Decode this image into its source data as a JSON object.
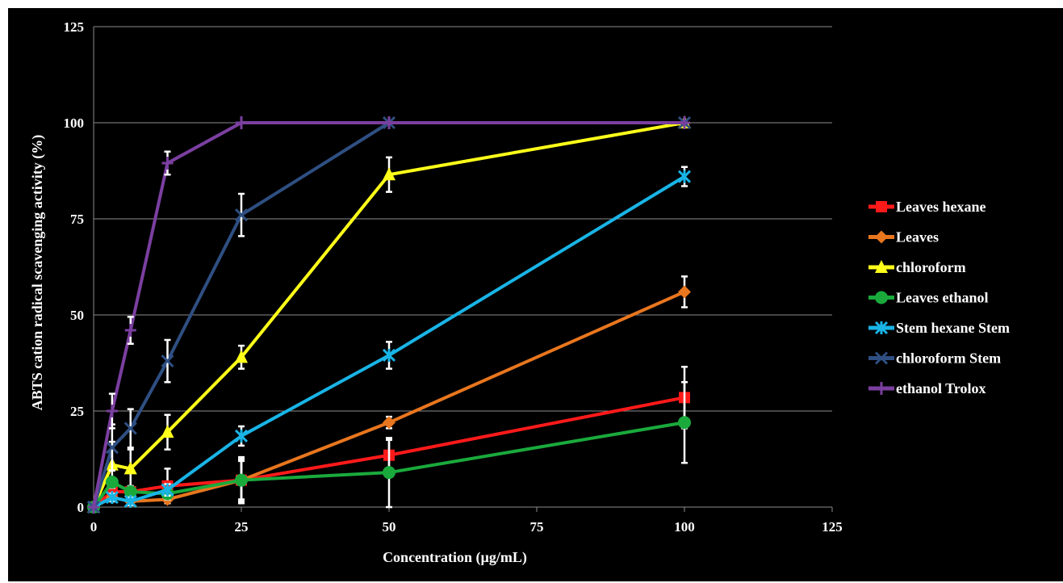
{
  "chart_data": {
    "type": "line",
    "xlabel": "Concentration (µg/mL)",
    "ylabel": "ABTS cation radical scavenging activity (%)",
    "xlim": [
      0,
      125
    ],
    "ylim": [
      0,
      125
    ],
    "xticks": [
      0,
      25,
      50,
      75,
      100,
      125
    ],
    "yticks": [
      0,
      25,
      50,
      75,
      100,
      125
    ],
    "grid": "horizontal",
    "legend_position": "right",
    "x": [
      0,
      3.125,
      6.25,
      12.5,
      25,
      50,
      100
    ],
    "series": [
      {
        "name": "Leaves hexane",
        "color": "#ff1a1a",
        "marker": "square",
        "values": [
          0,
          4,
          4,
          5.5,
          7,
          13.5,
          28.5
        ],
        "errors": [
          0,
          1.5,
          1.5,
          4.5,
          5,
          4,
          8
        ]
      },
      {
        "name": "Leaves",
        "color": "#e8761e",
        "marker": "diamond",
        "values": [
          0,
          2.5,
          1.5,
          2,
          7,
          22,
          56
        ],
        "errors": [
          0,
          1,
          1,
          1,
          6,
          1.5,
          4
        ]
      },
      {
        "name": "chloroform",
        "color": "#ffff1a",
        "marker": "triangle",
        "values": [
          0,
          11,
          10,
          19.5,
          39,
          86.5,
          100
        ],
        "errors": [
          0,
          6,
          5,
          4.5,
          3,
          4.5,
          0
        ]
      },
      {
        "name": "Leaves ethanol",
        "color": "#1aaa3c",
        "marker": "circle",
        "values": [
          0,
          6.5,
          4,
          3.5,
          7,
          9,
          22
        ],
        "errors": [
          0,
          1,
          1,
          1.5,
          5.5,
          9,
          10.5
        ]
      },
      {
        "name": "Stem hexane Stem",
        "color": "#19b4e6",
        "marker": "asterisk",
        "values": [
          0,
          2.5,
          1.5,
          4.5,
          18.5,
          39.5,
          86
        ],
        "errors": [
          0,
          1,
          1,
          1.5,
          2.5,
          3.5,
          2.5
        ]
      },
      {
        "name": "chloroform Stem",
        "color": "#2f4f82",
        "marker": "x",
        "values": [
          0,
          15.5,
          20.5,
          38,
          76,
          100,
          100
        ],
        "errors": [
          0,
          6,
          5,
          5.5,
          5.5,
          0,
          0
        ]
      },
      {
        "name": "ethanol Trolox",
        "color": "#7b3fa0",
        "marker": "plus",
        "values": [
          0,
          25,
          46,
          89.5,
          100,
          100,
          100
        ],
        "errors": [
          0,
          4.5,
          3.5,
          3,
          0,
          0,
          0
        ]
      }
    ]
  }
}
